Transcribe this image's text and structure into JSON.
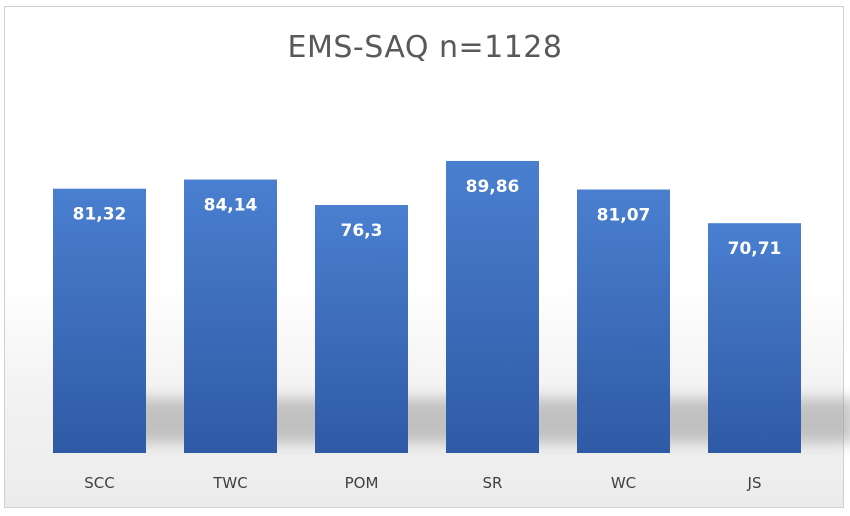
{
  "chart_data": {
    "type": "bar",
    "title": "EMS-SAQ n=1128",
    "categories": [
      "SCC",
      "TWC",
      "POM",
      "SR",
      "WC",
      "JS"
    ],
    "values": [
      81.32,
      84.14,
      76.3,
      89.86,
      81.07,
      70.71
    ],
    "value_labels": [
      "81,32",
      "84,14",
      "76,3",
      "89,86",
      "81,07",
      "70,71"
    ],
    "ylim": [
      0,
      100
    ],
    "grid": false,
    "legend": "none",
    "colors": {
      "bar_top": "#4a7fd0",
      "bar_bottom": "#2f5aa5"
    }
  }
}
